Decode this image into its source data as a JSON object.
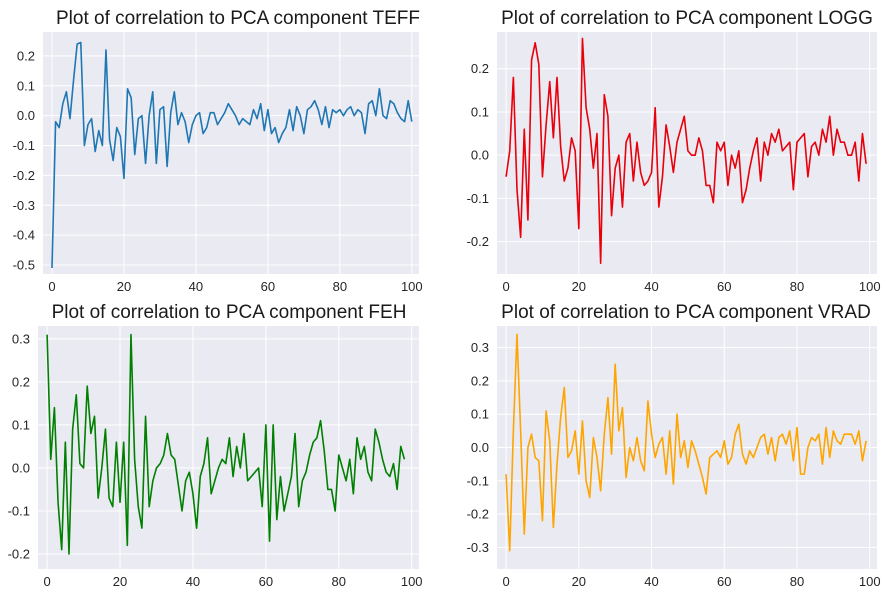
{
  "chart_data": [
    {
      "type": "line",
      "title": "Plot of correlation to PCA component TEFF",
      "color": "#1f77b4",
      "xlim": [
        -2.5,
        102
      ],
      "ylim": [
        -0.53,
        0.28
      ],
      "xticks": [
        0,
        20,
        40,
        60,
        80,
        100
      ],
      "yticks": [
        -0.5,
        -0.4,
        -0.3,
        -0.2,
        -0.1,
        0.0,
        0.1,
        0.2
      ],
      "ytick_labels": [
        "-0.5",
        "-0.4",
        "-0.3",
        "-0.2",
        "-0.1",
        "0.0",
        "0.1",
        "0.2"
      ],
      "grid": true,
      "series": [
        {
          "values": [
            -0.51,
            -0.02,
            -0.04,
            0.04,
            0.08,
            -0.01,
            0.12,
            0.24,
            0.245,
            -0.1,
            -0.03,
            -0.01,
            -0.12,
            -0.05,
            -0.1,
            0.22,
            -0.08,
            -0.15,
            -0.04,
            -0.07,
            -0.21,
            0.09,
            0.06,
            -0.13,
            -0.01,
            0.0,
            -0.16,
            0.0,
            0.08,
            -0.16,
            0.02,
            0.03,
            -0.17,
            0.01,
            0.08,
            -0.03,
            0.01,
            -0.02,
            -0.09,
            -0.03,
            0.0,
            0.01,
            -0.06,
            -0.04,
            0.01,
            0.01,
            -0.03,
            -0.01,
            0.01,
            0.04,
            0.02,
            0.0,
            -0.03,
            -0.01,
            -0.02,
            -0.03,
            0.02,
            -0.01,
            0.04,
            -0.05,
            0.02,
            -0.06,
            -0.04,
            -0.09,
            -0.06,
            -0.04,
            0.02,
            -0.05,
            0.03,
            0.0,
            -0.06,
            0.02,
            0.03,
            0.05,
            0.02,
            -0.03,
            0.03,
            -0.04,
            0.02,
            0.01,
            0.02,
            0.0,
            0.02,
            0.03,
            0.0,
            0.02,
            0.01,
            -0.06,
            0.04,
            0.05,
            0.0,
            0.09,
            0.0,
            -0.01,
            0.05,
            0.04,
            0.01,
            -0.01,
            -0.02,
            0.05,
            -0.02
          ]
        }
      ]
    },
    {
      "type": "line",
      "title": "Plot of correlation to PCA component  LOGG",
      "color": "#e8000b",
      "xlim": [
        -2.5,
        102
      ],
      "ylim": [
        -0.275,
        0.285
      ],
      "xticks": [
        0,
        20,
        40,
        60,
        80,
        100
      ],
      "yticks": [
        -0.2,
        -0.1,
        0.0,
        0.1,
        0.2
      ],
      "ytick_labels": [
        "-0.2",
        "-0.1",
        "0.0",
        "0.1",
        "0.2"
      ],
      "grid": true,
      "series": [
        {
          "values": [
            -0.05,
            0.01,
            0.18,
            -0.08,
            -0.19,
            0.06,
            -0.15,
            0.22,
            0.26,
            0.21,
            -0.05,
            0.07,
            0.17,
            0.04,
            0.18,
            0.02,
            -0.06,
            -0.03,
            0.04,
            0.01,
            -0.17,
            0.27,
            0.11,
            0.06,
            -0.03,
            0.05,
            -0.25,
            0.14,
            0.09,
            -0.14,
            -0.03,
            0.0,
            -0.12,
            0.03,
            0.05,
            -0.06,
            0.03,
            -0.04,
            -0.07,
            -0.06,
            -0.04,
            0.11,
            -0.12,
            -0.05,
            0.07,
            0.02,
            -0.04,
            0.03,
            0.06,
            0.09,
            0.01,
            0.0,
            0.0,
            0.04,
            0.01,
            -0.07,
            -0.07,
            -0.11,
            0.03,
            0.01,
            0.03,
            -0.07,
            0.0,
            -0.03,
            0.01,
            -0.11,
            -0.08,
            -0.03,
            0.01,
            0.04,
            -0.06,
            0.03,
            0.0,
            0.05,
            0.03,
            0.06,
            0.01,
            0.02,
            0.03,
            -0.08,
            0.03,
            0.04,
            0.05,
            -0.05,
            0.02,
            0.03,
            0.0,
            0.06,
            0.03,
            0.09,
            0.0,
            0.06,
            0.03,
            0.03,
            0.0,
            0.0,
            0.03,
            -0.06,
            0.05,
            -0.02
          ]
        }
      ]
    },
    {
      "type": "line",
      "title": "Plot of correlation to PCA component  FEH",
      "color": "#008000",
      "xlim": [
        -2.5,
        102
      ],
      "ylim": [
        -0.235,
        0.33
      ],
      "xticks": [
        0,
        20,
        40,
        60,
        80,
        100
      ],
      "yticks": [
        -0.2,
        -0.1,
        0.0,
        0.1,
        0.2,
        0.3
      ],
      "ytick_labels": [
        "-0.2",
        "-0.1",
        "0.0",
        "0.1",
        "0.2",
        "0.3"
      ],
      "grid": true,
      "series": [
        {
          "values": [
            0.31,
            0.02,
            0.14,
            -0.08,
            -0.19,
            0.06,
            -0.2,
            0.09,
            0.17,
            0.01,
            0.0,
            0.19,
            0.08,
            0.12,
            -0.07,
            0.0,
            0.09,
            -0.07,
            -0.09,
            0.06,
            -0.08,
            0.06,
            -0.18,
            0.31,
            0.02,
            -0.09,
            -0.14,
            0.12,
            -0.09,
            -0.03,
            0.0,
            0.01,
            0.03,
            0.08,
            0.03,
            0.02,
            -0.04,
            -0.1,
            -0.03,
            -0.01,
            -0.06,
            -0.14,
            -0.02,
            0.01,
            0.07,
            -0.06,
            -0.03,
            0.0,
            0.02,
            0.01,
            0.07,
            -0.02,
            0.05,
            0.0,
            0.08,
            -0.03,
            -0.02,
            -0.01,
            0.0,
            -0.09,
            0.1,
            -0.17,
            0.1,
            -0.12,
            -0.02,
            -0.1,
            -0.06,
            -0.02,
            0.08,
            -0.09,
            -0.03,
            -0.01,
            0.03,
            0.06,
            0.07,
            0.11,
            0.04,
            -0.05,
            -0.05,
            -0.1,
            0.03,
            0.0,
            -0.03,
            0.02,
            -0.06,
            0.07,
            0.02,
            0.05,
            -0.01,
            -0.03,
            0.09,
            0.06,
            0.02,
            -0.01,
            -0.02,
            0.01,
            -0.05,
            0.05,
            0.02
          ]
        }
      ]
    },
    {
      "type": "line",
      "title": "Plot of correlation to PCA component  VRAD",
      "color": "#ffa500",
      "xlim": [
        -2.5,
        102
      ],
      "ylim": [
        -0.365,
        0.365
      ],
      "xticks": [
        0,
        20,
        40,
        60,
        80,
        100
      ],
      "yticks": [
        -0.3,
        -0.2,
        -0.1,
        0.0,
        0.1,
        0.2,
        0.3
      ],
      "ytick_labels": [
        "-0.3",
        "-0.2",
        "-0.1",
        "0.0",
        "0.1",
        "0.2",
        "0.3"
      ],
      "grid": true,
      "series": [
        {
          "values": [
            -0.08,
            -0.31,
            0.05,
            0.34,
            0.05,
            -0.26,
            0.0,
            0.04,
            -0.03,
            -0.04,
            -0.22,
            0.11,
            0.02,
            -0.24,
            -0.05,
            0.09,
            0.18,
            -0.03,
            -0.01,
            0.05,
            -0.08,
            0.08,
            -0.1,
            -0.15,
            0.03,
            -0.03,
            -0.13,
            0.04,
            0.15,
            -0.02,
            0.25,
            0.05,
            0.12,
            -0.09,
            0.0,
            -0.04,
            0.03,
            -0.04,
            -0.07,
            0.14,
            0.04,
            -0.03,
            0.01,
            0.03,
            -0.08,
            0.05,
            -0.11,
            0.1,
            -0.03,
            0.02,
            -0.06,
            0.02,
            -0.01,
            -0.05,
            -0.09,
            -0.14,
            -0.03,
            -0.02,
            -0.01,
            -0.03,
            0.02,
            -0.05,
            -0.03,
            0.04,
            0.07,
            -0.02,
            -0.05,
            -0.01,
            -0.03,
            0.0,
            0.03,
            0.04,
            -0.02,
            0.03,
            -0.04,
            0.03,
            0.04,
            0.01,
            0.05,
            -0.04,
            0.06,
            -0.08,
            -0.08,
            0.0,
            0.03,
            0.02,
            0.04,
            -0.05,
            0.06,
            -0.03,
            0.05,
            0.02,
            0.01,
            0.04,
            0.04,
            0.04,
            0.01,
            0.05,
            -0.04,
            0.02
          ]
        }
      ]
    }
  ]
}
